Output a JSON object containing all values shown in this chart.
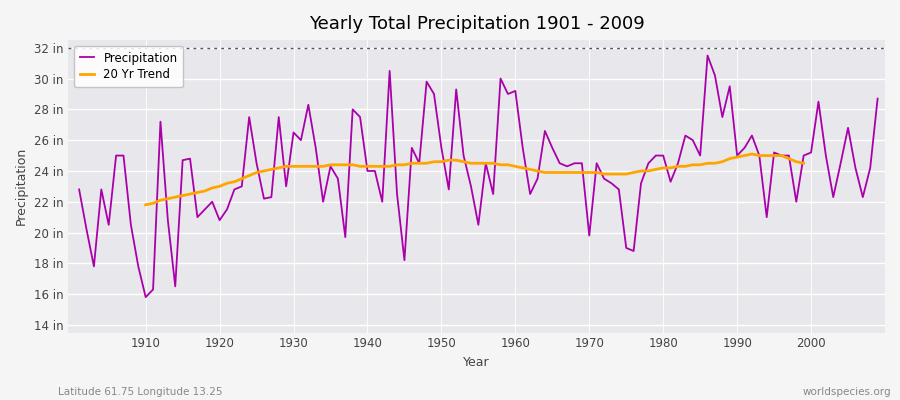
{
  "title": "Yearly Total Precipitation 1901 - 2009",
  "xlabel": "Year",
  "ylabel": "Precipitation",
  "footnote_left": "Latitude 61.75 Longitude 13.25",
  "footnote_right": "worldspecies.org",
  "legend_precipitation": "Precipitation",
  "legend_trend": "20 Yr Trend",
  "precipitation_color": "#AA00AA",
  "trend_color": "#FFA500",
  "background_color": "#F5F5F5",
  "plot_bg_color": "#E8E8EC",
  "ylim": [
    13.5,
    32.5
  ],
  "yticks": [
    14,
    16,
    18,
    20,
    22,
    24,
    26,
    28,
    30,
    32
  ],
  "xlim": [
    1899.5,
    2010
  ],
  "xticks": [
    1910,
    1920,
    1930,
    1940,
    1950,
    1960,
    1970,
    1980,
    1990,
    2000
  ],
  "dashed_line_y": 32,
  "years": [
    1901,
    1902,
    1903,
    1904,
    1905,
    1906,
    1907,
    1908,
    1909,
    1910,
    1911,
    1912,
    1913,
    1914,
    1915,
    1916,
    1917,
    1918,
    1919,
    1920,
    1921,
    1922,
    1923,
    1924,
    1925,
    1926,
    1927,
    1928,
    1929,
    1930,
    1931,
    1932,
    1933,
    1934,
    1935,
    1936,
    1937,
    1938,
    1939,
    1940,
    1941,
    1942,
    1943,
    1944,
    1945,
    1946,
    1947,
    1948,
    1949,
    1950,
    1951,
    1952,
    1953,
    1954,
    1955,
    1956,
    1957,
    1958,
    1959,
    1960,
    1961,
    1962,
    1963,
    1964,
    1965,
    1966,
    1967,
    1968,
    1969,
    1970,
    1971,
    1972,
    1973,
    1974,
    1975,
    1976,
    1977,
    1978,
    1979,
    1980,
    1981,
    1982,
    1983,
    1984,
    1985,
    1986,
    1987,
    1988,
    1989,
    1990,
    1991,
    1992,
    1993,
    1994,
    1995,
    1996,
    1997,
    1998,
    1999,
    2000,
    2001,
    2002,
    2003,
    2004,
    2005,
    2006,
    2007,
    2008,
    2009
  ],
  "precipitation": [
    22.8,
    20.2,
    17.8,
    22.8,
    20.5,
    25.0,
    25.0,
    20.5,
    17.8,
    15.8,
    16.3,
    27.2,
    20.8,
    16.5,
    24.7,
    24.8,
    21.0,
    21.5,
    22.0,
    20.8,
    21.5,
    22.8,
    23.0,
    27.5,
    24.5,
    22.2,
    22.3,
    27.5,
    23.0,
    26.5,
    26.0,
    28.3,
    25.5,
    22.0,
    24.3,
    23.5,
    19.7,
    28.0,
    27.5,
    24.0,
    24.0,
    22.0,
    30.5,
    22.5,
    18.2,
    25.5,
    24.5,
    29.8,
    29.0,
    25.5,
    22.8,
    29.3,
    25.0,
    23.0,
    20.5,
    24.5,
    22.5,
    30.0,
    29.0,
    29.2,
    25.5,
    22.5,
    23.5,
    26.6,
    25.5,
    24.5,
    24.3,
    24.5,
    24.5,
    19.8,
    24.5,
    23.5,
    23.2,
    22.8,
    19.0,
    18.8,
    23.2,
    24.5,
    25.0,
    25.0,
    23.3,
    24.5,
    26.3,
    26.0,
    25.0,
    31.5,
    30.2,
    27.5,
    29.5,
    25.0,
    25.5,
    26.3,
    25.0,
    21.0,
    25.2,
    25.0,
    25.0,
    22.0,
    25.0,
    25.2,
    28.5,
    25.0,
    22.3,
    24.5,
    26.8,
    24.2,
    22.3,
    24.2,
    28.7
  ],
  "trend_start_year": 1910,
  "trend": [
    21.8,
    21.9,
    22.1,
    22.2,
    22.3,
    22.4,
    22.5,
    22.6,
    22.7,
    22.9,
    23.0,
    23.2,
    23.3,
    23.5,
    23.7,
    23.9,
    24.0,
    24.1,
    24.2,
    24.3,
    24.3,
    24.3,
    24.3,
    24.3,
    24.3,
    24.4,
    24.4,
    24.4,
    24.4,
    24.3,
    24.3,
    24.3,
    24.3,
    24.3,
    24.4,
    24.4,
    24.5,
    24.5,
    24.5,
    24.6,
    24.6,
    24.7,
    24.7,
    24.6,
    24.5,
    24.5,
    24.5,
    24.5,
    24.4,
    24.4,
    24.3,
    24.2,
    24.1,
    24.0,
    23.9,
    23.9,
    23.9,
    23.9,
    23.9,
    23.9,
    23.9,
    23.9,
    23.8,
    23.8,
    23.8,
    23.8,
    23.9,
    24.0,
    24.0,
    24.1,
    24.2,
    24.2,
    24.3,
    24.3,
    24.4,
    24.4,
    24.5,
    24.5,
    24.6,
    24.8,
    24.9,
    25.0,
    25.1,
    25.0,
    25.0,
    25.0,
    25.0,
    24.8,
    24.6,
    24.5
  ]
}
